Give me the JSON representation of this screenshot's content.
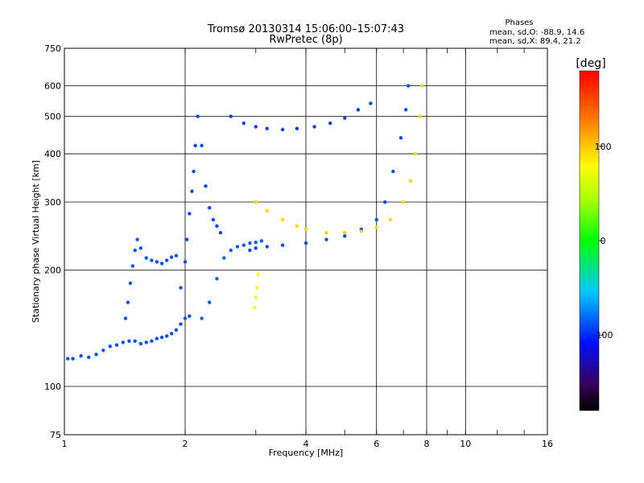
{
  "chart_data": {
    "type": "scatter",
    "title": "Tromsø 20130314 15:06:00–15:07:43",
    "subtitle": "RwPretec (8p)",
    "stats": {
      "heading": "Phases",
      "line_o": "mean, sd,O: -88.9, 14.6",
      "line_x": "mean, sd,X: 89.4, 21.2"
    },
    "xlabel": "Frequency [MHz]",
    "ylabel": "Stationary phase Virtual Height [km]",
    "xscale": "log",
    "yscale": "log",
    "xlim": [
      1,
      16
    ],
    "ylim": [
      75,
      750
    ],
    "xticks": [
      1,
      2,
      4,
      6,
      8,
      10,
      16
    ],
    "xtick_labels": [
      "1",
      "2",
      "4",
      "6",
      "8",
      "10",
      "16"
    ],
    "yticks": [
      75,
      100,
      200,
      300,
      400,
      500,
      600,
      750
    ],
    "ytick_labels": [
      "75",
      "100",
      "200",
      "300",
      "400",
      "500",
      "600",
      "750"
    ],
    "grid": true,
    "colorbar": {
      "label": "[deg]",
      "range": [
        -180,
        180
      ],
      "ticks": [
        -100,
        0,
        100
      ],
      "tick_labels": [
        "-100",
        "0",
        "100"
      ]
    },
    "series": [
      {
        "x": [
          1.02,
          1.05,
          1.1,
          1.15,
          1.2,
          1.25,
          1.3,
          1.35,
          1.4,
          1.45,
          1.5,
          1.55,
          1.6,
          1.65,
          1.7,
          1.75,
          1.8,
          1.85,
          1.9,
          1.95,
          2.0,
          2.05
        ],
        "y": [
          118,
          118,
          120,
          119,
          121,
          124,
          127,
          128,
          130,
          131,
          131,
          129,
          130,
          131,
          133,
          134,
          135,
          137,
          140,
          145,
          150,
          152
        ],
        "phase": -90
      },
      {
        "x": [
          1.42,
          1.44,
          1.46,
          1.48,
          1.5,
          1.52,
          1.55,
          1.6,
          1.65,
          1.7,
          1.75,
          1.8,
          1.85,
          1.9
        ],
        "y": [
          150,
          165,
          185,
          205,
          225,
          240,
          228,
          215,
          212,
          210,
          208,
          212,
          216,
          218
        ],
        "phase": -88
      },
      {
        "x": [
          1.95,
          2.0,
          2.02,
          2.05,
          2.08,
          2.1,
          2.12,
          2.15,
          2.2,
          2.25,
          2.3,
          2.35,
          2.4,
          2.45
        ],
        "y": [
          180,
          210,
          240,
          280,
          320,
          360,
          420,
          500,
          420,
          330,
          290,
          270,
          260,
          250
        ],
        "phase": -92
      },
      {
        "x": [
          2.2,
          2.3,
          2.4,
          2.5,
          2.6,
          2.7,
          2.8,
          2.9,
          3.0,
          3.1
        ],
        "y": [
          150,
          165,
          190,
          215,
          225,
          230,
          232,
          235,
          236,
          238
        ],
        "phase": -85
      },
      {
        "x": [
          2.6,
          2.8,
          3.0,
          3.2,
          3.5,
          3.8,
          4.2,
          4.6,
          5.0,
          5.4,
          5.8
        ],
        "y": [
          500,
          480,
          470,
          465,
          462,
          465,
          470,
          480,
          495,
          520,
          540
        ],
        "phase": -95
      },
      {
        "x": [
          2.9,
          3.0,
          3.2,
          3.5,
          4.0,
          4.5,
          5.0,
          5.5,
          6.0,
          6.3,
          6.6,
          6.9,
          7.1,
          7.2
        ],
        "y": [
          225,
          228,
          230,
          232,
          235,
          240,
          245,
          255,
          270,
          300,
          360,
          440,
          520,
          600
        ],
        "phase": -90
      },
      {
        "x": [
          3.0,
          3.2,
          3.5,
          3.8,
          4.0,
          4.5,
          5.0,
          5.5,
          6.0,
          6.5,
          7.0,
          7.3,
          7.5,
          7.7,
          7.8
        ],
        "y": [
          300,
          285,
          270,
          260,
          255,
          250,
          250,
          252,
          258,
          270,
          300,
          340,
          400,
          500,
          600
        ],
        "phase": 95
      },
      {
        "x": [
          2.98,
          3.0,
          3.02,
          3.04
        ],
        "y": [
          160,
          170,
          180,
          195
        ],
        "phase": 80
      }
    ],
    "legend": ""
  }
}
